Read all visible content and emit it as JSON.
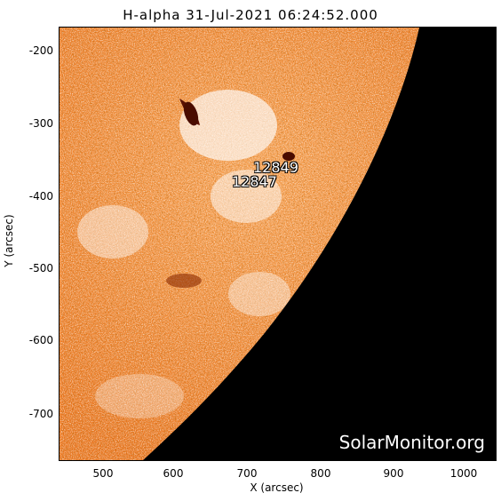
{
  "title": "H-alpha 31-Jul-2021 06:24:52.000",
  "x_axis": {
    "label": "X (arcsec)",
    "ticks": [
      "500",
      "600",
      "700",
      "800",
      "900",
      "1000"
    ]
  },
  "y_axis": {
    "label": "Y (arcsec)",
    "ticks": [
      "-200",
      "-300",
      "-400",
      "-500",
      "-600",
      "-700"
    ]
  },
  "regions": [
    "12849",
    "12847"
  ],
  "watermark": "SolarMonitor.org",
  "colors": {
    "disk_bg": "#f07b1f",
    "dark": "#7a1c00",
    "bright": "#ffffff",
    "space": "#000000"
  }
}
